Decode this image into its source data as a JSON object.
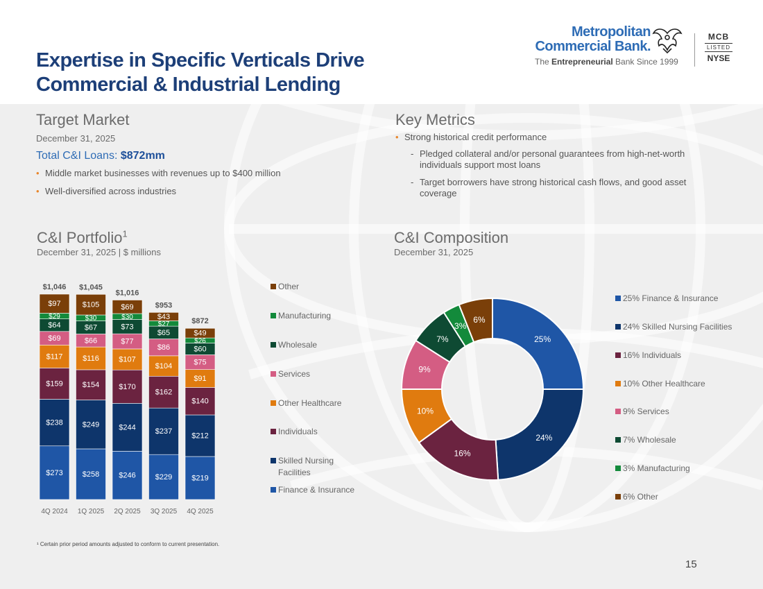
{
  "title": {
    "line1": "Expertise in Specific Verticals Drive",
    "line2": "Commercial & Industrial Lending"
  },
  "logo": {
    "name_line1": "Metropolitan",
    "name_line2": "Commercial Bank.",
    "tagline_pre": "The ",
    "tagline_bold": "Entrepreneurial",
    "tagline_post": " Bank Since 1999",
    "ticker": "MCB",
    "listed": "LISTED",
    "exchange": "NYSE"
  },
  "target_market": {
    "heading": "Target Market",
    "date": "December 31, 2025",
    "total_label": "Total C&I Loans: ",
    "total_value": "$872mm",
    "bullets": [
      "Middle market businesses with revenues up to $400 million",
      "Well-diversified across industries"
    ]
  },
  "key_metrics": {
    "heading": "Key Metrics",
    "bullet": "Strong historical credit performance",
    "subs": [
      "Pledged collateral and/or personal guarantees from high-net-worth individuals support most loans",
      "Target borrowers have strong historical cash flows, and good asset coverage"
    ]
  },
  "portfolio": {
    "heading": "C&I Portfolio",
    "heading_sup": "1",
    "subheading": "December 31, 2025 | $ millions"
  },
  "composition": {
    "heading": "C&I Composition",
    "subheading": "December 31, 2025"
  },
  "colors": {
    "Finance & Insurance": "#1f56a6",
    "Skilled Nursing Facilities": "#0e356b",
    "Individuals": "#6b2340",
    "Other Healthcare": "#e07b0f",
    "Services": "#d45d83",
    "Wholesale": "#0e4a33",
    "Manufacturing": "#138a3b",
    "Other": "#7a3f09"
  },
  "chart_data": [
    {
      "type": "bar",
      "stacked": true,
      "categories": [
        "4Q 2024",
        "1Q 2025",
        "2Q 2025",
        "3Q 2025",
        "4Q 2025"
      ],
      "totals": [
        "$1,046",
        "$1,045",
        "$1,016",
        "$953",
        "$872"
      ],
      "total_values": [
        1046,
        1045,
        1016,
        953,
        872
      ],
      "series": [
        {
          "name": "Finance & Insurance",
          "values": [
            273,
            258,
            246,
            229,
            219
          ]
        },
        {
          "name": "Skilled Nursing Facilities",
          "values": [
            238,
            249,
            244,
            237,
            212
          ]
        },
        {
          "name": "Individuals",
          "values": [
            159,
            154,
            170,
            162,
            140
          ]
        },
        {
          "name": "Other Healthcare",
          "values": [
            117,
            116,
            107,
            104,
            91
          ]
        },
        {
          "name": "Services",
          "values": [
            69,
            66,
            77,
            86,
            75
          ]
        },
        {
          "name": "Wholesale",
          "values": [
            64,
            67,
            73,
            65,
            60
          ]
        },
        {
          "name": "Manufacturing",
          "values": [
            29,
            30,
            30,
            27,
            26
          ]
        },
        {
          "name": "Other",
          "values": [
            97,
            105,
            69,
            43,
            49
          ]
        }
      ],
      "legend": [
        "Other",
        "Manufacturing",
        "Wholesale",
        "Services",
        "Other Healthcare",
        "Individuals",
        "Skilled Nursing Facilities",
        "Finance & Insurance"
      ],
      "ylim": [
        0,
        1046
      ]
    },
    {
      "type": "pie",
      "donut": true,
      "slices": [
        {
          "name": "Finance & Insurance",
          "value": 25,
          "label": "25%",
          "legend": "25% Finance & Insurance"
        },
        {
          "name": "Skilled Nursing Facilities",
          "value": 24,
          "label": "24%",
          "legend": "24% Skilled Nursing Facilities"
        },
        {
          "name": "Individuals",
          "value": 16,
          "label": "16%",
          "legend": "16% Individuals"
        },
        {
          "name": "Other Healthcare",
          "value": 10,
          "label": "10%",
          "legend": "10% Other Healthcare"
        },
        {
          "name": "Services",
          "value": 9,
          "label": "9%",
          "legend": "9% Services"
        },
        {
          "name": "Wholesale",
          "value": 7,
          "label": "7%",
          "legend": "7% Wholesale"
        },
        {
          "name": "Manufacturing",
          "value": 3,
          "label": "3%",
          "legend": "3% Manufacturing"
        },
        {
          "name": "Other",
          "value": 6,
          "label": "6%",
          "legend": "6% Other"
        }
      ]
    }
  ],
  "footnote": "¹ Certain prior period amounts adjusted to conform to current presentation.",
  "page_number": "15"
}
